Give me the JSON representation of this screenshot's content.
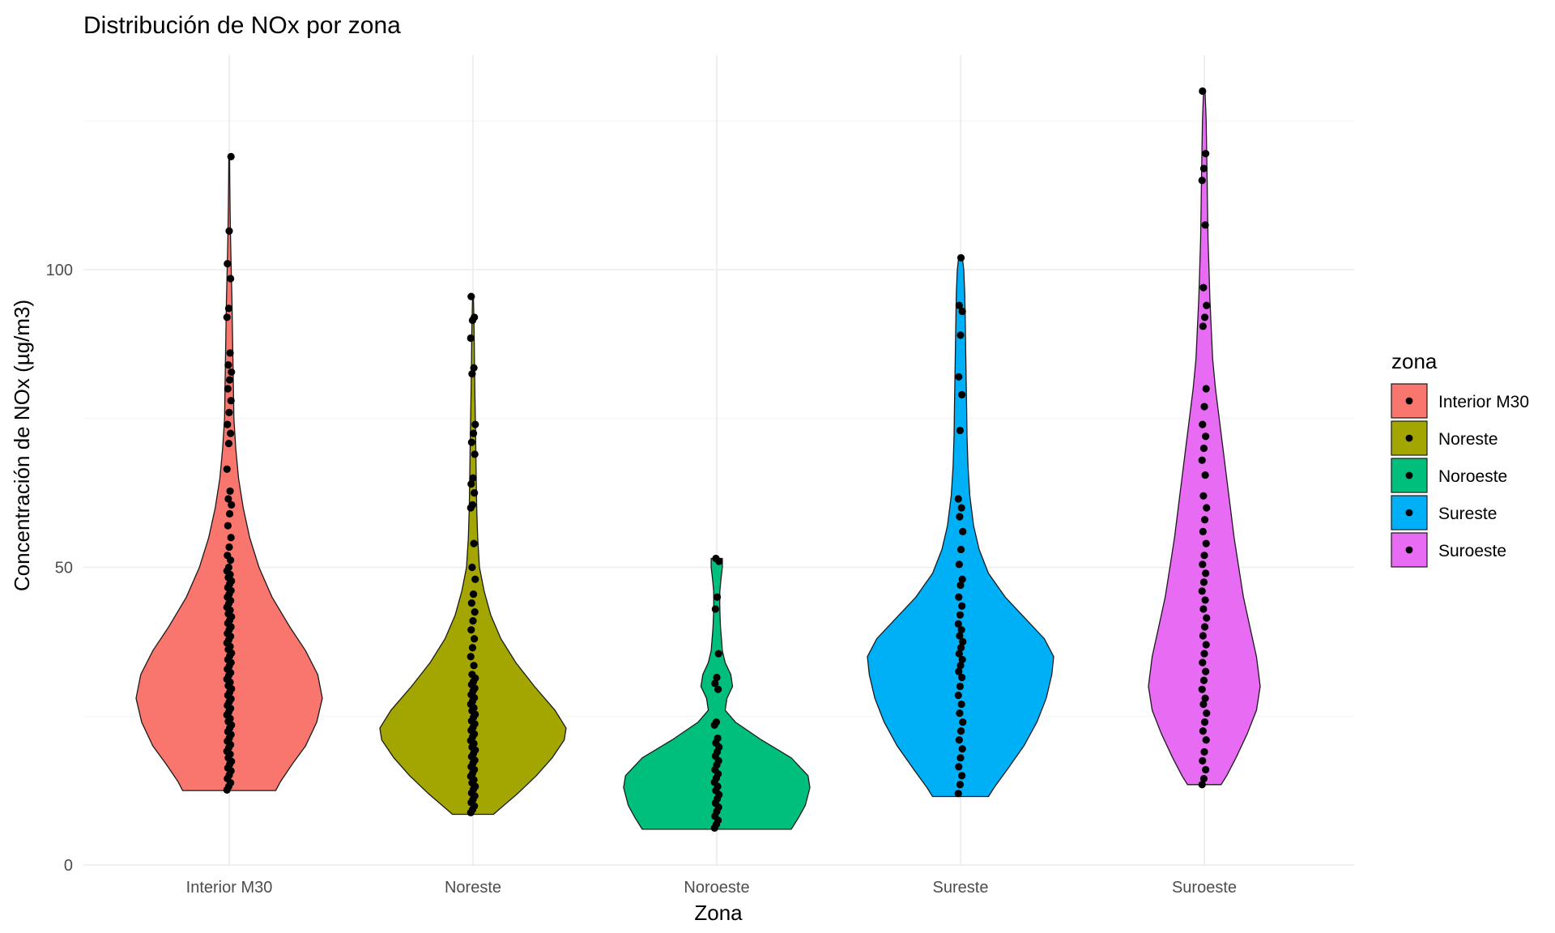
{
  "chart_data": {
    "type": "violin",
    "title": "Distribución de NOx por zona",
    "xlabel": "Zona",
    "ylabel": "Concentración de NOx (µg/m3)",
    "ylim": [
      0,
      130
    ],
    "yticks": [
      0,
      50,
      100
    ],
    "grid": true,
    "legend": {
      "title": "zona",
      "position": "right"
    },
    "categories": [
      "Interior M30",
      "Noreste",
      "Noroeste",
      "Sureste",
      "Suroeste"
    ],
    "series": [
      {
        "name": "Interior M30",
        "color": "#F8766D",
        "min": 12.5,
        "max": 119,
        "density": [
          [
            12.5,
            0.5
          ],
          [
            14,
            0.55
          ],
          [
            17,
            0.68
          ],
          [
            20,
            0.82
          ],
          [
            24,
            0.94
          ],
          [
            28,
            1.0
          ],
          [
            32,
            0.95
          ],
          [
            36,
            0.82
          ],
          [
            40,
            0.65
          ],
          [
            45,
            0.46
          ],
          [
            50,
            0.32
          ],
          [
            55,
            0.22
          ],
          [
            60,
            0.15
          ],
          [
            65,
            0.1
          ],
          [
            70,
            0.07
          ],
          [
            75,
            0.05
          ],
          [
            80,
            0.045
          ],
          [
            85,
            0.04
          ],
          [
            90,
            0.035
          ],
          [
            95,
            0.03
          ],
          [
            100,
            0.022
          ],
          [
            105,
            0.015
          ],
          [
            110,
            0.01
          ],
          [
            115,
            0.006
          ],
          [
            119,
            0.004
          ]
        ],
        "values": [
          12.6,
          13.2,
          13.8,
          14.5,
          15.1,
          15.8,
          16.3,
          16.9,
          17.4,
          18.0,
          18.6,
          19.1,
          19.7,
          20.2,
          20.8,
          21.3,
          21.9,
          22.4,
          23.0,
          23.5,
          24.1,
          24.6,
          25.2,
          25.7,
          26.3,
          26.8,
          27.4,
          27.9,
          28.5,
          29.0,
          29.6,
          30.1,
          30.7,
          31.2,
          31.8,
          32.3,
          32.9,
          33.4,
          34.0,
          34.5,
          35.1,
          35.6,
          36.2,
          36.7,
          37.3,
          37.8,
          38.4,
          38.9,
          39.5,
          40.0,
          40.6,
          41.1,
          41.7,
          42.2,
          42.8,
          43.3,
          43.9,
          44.4,
          45.0,
          45.5,
          46.1,
          46.6,
          47.2,
          47.7,
          48.3,
          48.8,
          49.4,
          50.0,
          51.2,
          52.0,
          53.4,
          55.0,
          57.0,
          59.0,
          60.5,
          61.5,
          62.8,
          66.5,
          70.8,
          72.5,
          74.0,
          76.0,
          78.0,
          80.0,
          81.5,
          82.8,
          84.0,
          86.0,
          92.0,
          93.5,
          98.5,
          101.0,
          106.5,
          119.0
        ]
      },
      {
        "name": "Noreste",
        "color": "#A3A500",
        "min": 8.5,
        "max": 95.5,
        "density": [
          [
            8.5,
            0.22
          ],
          [
            10,
            0.33
          ],
          [
            12,
            0.48
          ],
          [
            15,
            0.68
          ],
          [
            18,
            0.85
          ],
          [
            21,
            0.98
          ],
          [
            23,
            1.0
          ],
          [
            26,
            0.88
          ],
          [
            30,
            0.66
          ],
          [
            34,
            0.46
          ],
          [
            38,
            0.3
          ],
          [
            42,
            0.19
          ],
          [
            46,
            0.12
          ],
          [
            50,
            0.07
          ],
          [
            55,
            0.05
          ],
          [
            60,
            0.04
          ],
          [
            65,
            0.035
          ],
          [
            70,
            0.03
          ],
          [
            75,
            0.025
          ],
          [
            80,
            0.02
          ],
          [
            85,
            0.016
          ],
          [
            90,
            0.012
          ],
          [
            95.5,
            0.004
          ]
        ],
        "values": [
          8.8,
          9.3,
          9.9,
          10.5,
          11.0,
          11.6,
          12.1,
          12.7,
          13.2,
          13.8,
          14.3,
          14.9,
          15.4,
          16.0,
          16.5,
          17.1,
          17.6,
          18.2,
          18.7,
          19.3,
          19.8,
          20.4,
          20.9,
          21.5,
          22.0,
          22.6,
          23.1,
          23.7,
          24.2,
          24.8,
          25.3,
          25.9,
          26.4,
          27.0,
          27.5,
          28.1,
          28.6,
          29.2,
          29.7,
          30.3,
          30.8,
          31.4,
          32.0,
          33.5,
          35.0,
          36.5,
          38.0,
          39.5,
          41.0,
          42.5,
          44.0,
          45.5,
          48.0,
          50.0,
          54.0,
          60.0,
          60.5,
          62.5,
          64.0,
          65.0,
          69.0,
          71.0,
          72.5,
          74.0,
          82.5,
          83.5,
          88.5,
          91.5,
          92.0,
          95.5
        ]
      },
      {
        "name": "Noroeste",
        "color": "#00BF7D",
        "min": 6,
        "max": 51.5,
        "density": [
          [
            6,
            0.8
          ],
          [
            8,
            0.88
          ],
          [
            10,
            0.95
          ],
          [
            13,
            1.0
          ],
          [
            15,
            0.98
          ],
          [
            18,
            0.8
          ],
          [
            21,
            0.48
          ],
          [
            24,
            0.2
          ],
          [
            26,
            0.09
          ],
          [
            28,
            0.11
          ],
          [
            30,
            0.17
          ],
          [
            32,
            0.15
          ],
          [
            34,
            0.09
          ],
          [
            36,
            0.06
          ],
          [
            38,
            0.05
          ],
          [
            40,
            0.04
          ],
          [
            42,
            0.035
          ],
          [
            44,
            0.032
          ],
          [
            46,
            0.033
          ],
          [
            48,
            0.045
          ],
          [
            50,
            0.06
          ],
          [
            51.5,
            0.06
          ]
        ],
        "values": [
          6.2,
          6.8,
          7.5,
          8.2,
          9.0,
          9.7,
          10.4,
          11.1,
          11.8,
          12.5,
          13.2,
          13.9,
          14.6,
          15.3,
          16.0,
          16.8,
          17.5,
          18.3,
          19.0,
          19.8,
          20.5,
          21.3,
          23.5,
          24.0,
          29.5,
          30.5,
          31.5,
          35.5,
          43.0,
          45.0,
          51.0,
          51.5
        ]
      },
      {
        "name": "Sureste",
        "color": "#00B0F6",
        "min": 11.5,
        "max": 102,
        "density": [
          [
            11.5,
            0.3
          ],
          [
            13,
            0.36
          ],
          [
            16,
            0.5
          ],
          [
            20,
            0.68
          ],
          [
            24,
            0.82
          ],
          [
            28,
            0.92
          ],
          [
            32,
            0.98
          ],
          [
            35,
            1.0
          ],
          [
            38,
            0.9
          ],
          [
            41,
            0.72
          ],
          [
            45,
            0.48
          ],
          [
            49,
            0.3
          ],
          [
            53,
            0.2
          ],
          [
            57,
            0.14
          ],
          [
            62,
            0.1
          ],
          [
            67,
            0.08
          ],
          [
            72,
            0.07
          ],
          [
            77,
            0.065
          ],
          [
            82,
            0.06
          ],
          [
            87,
            0.055
          ],
          [
            92,
            0.05
          ],
          [
            96,
            0.045
          ],
          [
            100,
            0.035
          ],
          [
            102,
            0.02
          ]
        ],
        "values": [
          12.0,
          13.5,
          15.0,
          16.5,
          18.0,
          19.5,
          21.0,
          22.5,
          24.0,
          25.5,
          27.0,
          28.5,
          30.0,
          31.5,
          32.5,
          33.5,
          34.5,
          35.5,
          36.5,
          37.5,
          38.5,
          39.5,
          40.5,
          42.0,
          43.5,
          45.0,
          47.0,
          48.0,
          50.5,
          53.0,
          56.0,
          58.5,
          60.0,
          61.5,
          73.0,
          79.0,
          82.0,
          89.0,
          93.0,
          94.0,
          102.0
        ]
      },
      {
        "name": "Suroeste",
        "color": "#E76BF3",
        "min": 13.5,
        "max": 130,
        "density": [
          [
            13.5,
            0.18
          ],
          [
            15,
            0.24
          ],
          [
            18,
            0.34
          ],
          [
            22,
            0.46
          ],
          [
            26,
            0.56
          ],
          [
            30,
            0.6
          ],
          [
            35,
            0.56
          ],
          [
            40,
            0.49
          ],
          [
            45,
            0.42
          ],
          [
            50,
            0.37
          ],
          [
            55,
            0.32
          ],
          [
            60,
            0.28
          ],
          [
            65,
            0.24
          ],
          [
            70,
            0.2
          ],
          [
            75,
            0.16
          ],
          [
            80,
            0.12
          ],
          [
            85,
            0.09
          ],
          [
            90,
            0.075
          ],
          [
            95,
            0.06
          ],
          [
            100,
            0.05
          ],
          [
            105,
            0.04
          ],
          [
            110,
            0.035
          ],
          [
            115,
            0.03
          ],
          [
            120,
            0.025
          ],
          [
            125,
            0.02
          ],
          [
            130,
            0.008
          ]
        ],
        "values": [
          13.5,
          14.5,
          16.0,
          17.5,
          19.0,
          21.0,
          22.5,
          24.0,
          25.5,
          27.0,
          28.0,
          29.5,
          31.0,
          32.5,
          34.0,
          35.5,
          37.0,
          38.5,
          40.0,
          41.5,
          43.0,
          44.5,
          46.0,
          47.5,
          49.0,
          50.5,
          52.0,
          54.0,
          56.0,
          58.0,
          60.0,
          62.0,
          65.5,
          68.0,
          70.0,
          72.0,
          74.0,
          77.0,
          80.0,
          90.5,
          92.0,
          94.0,
          97.0,
          107.5,
          115.0,
          117.0,
          119.5,
          130.0
        ]
      }
    ]
  }
}
